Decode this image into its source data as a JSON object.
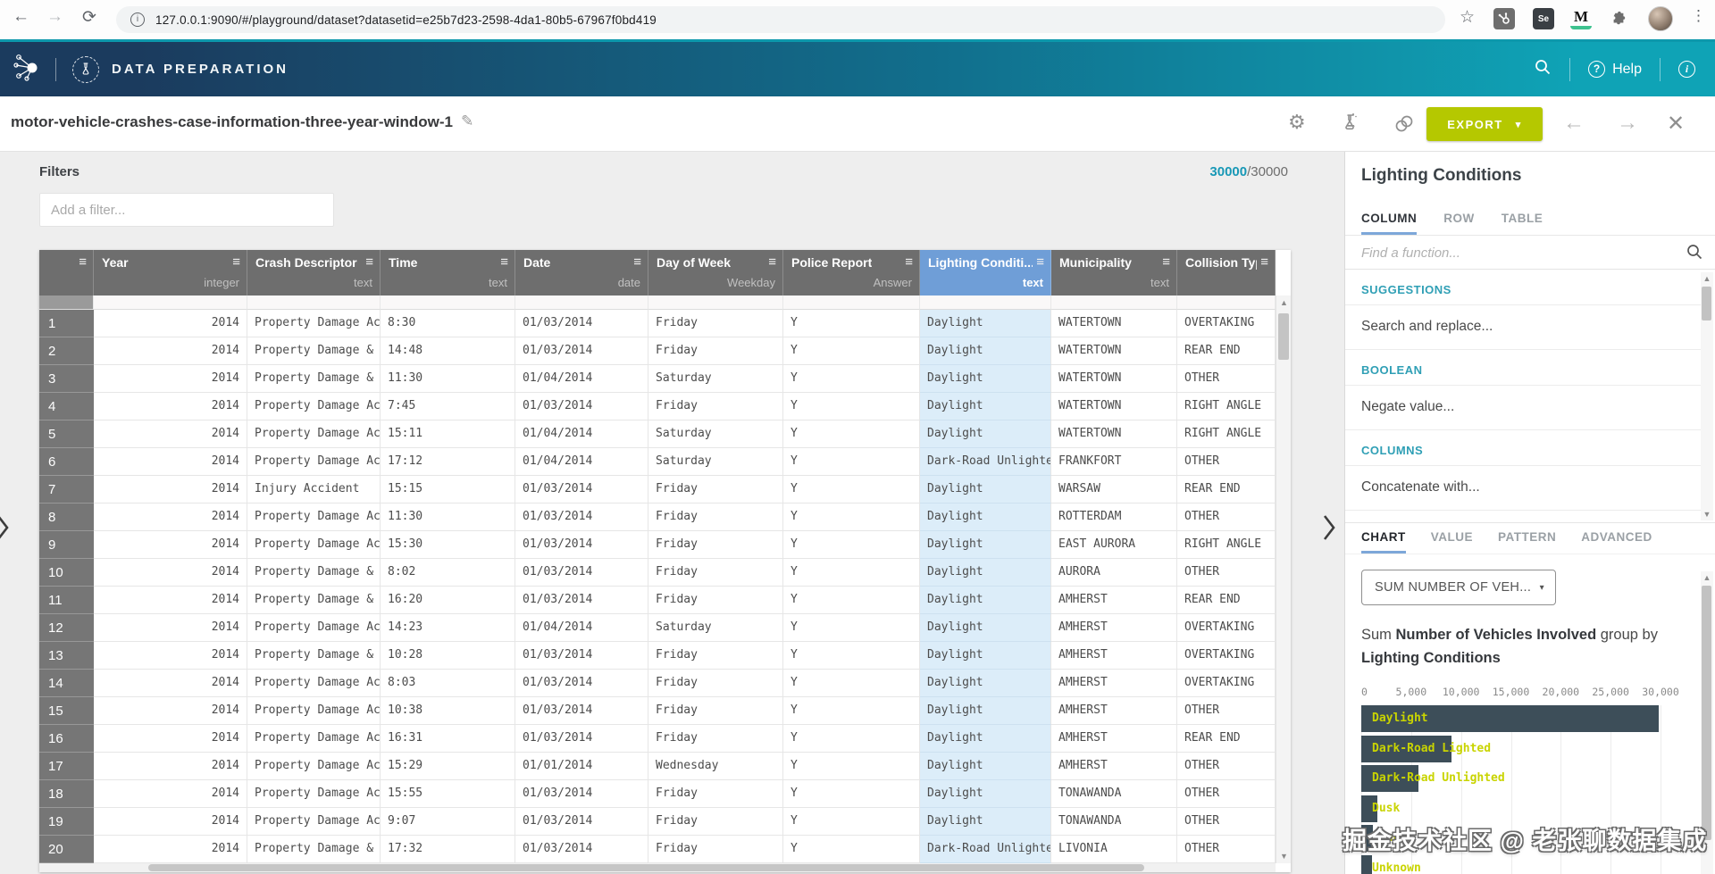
{
  "icons": {
    "menu": "≡",
    "up": "▲",
    "down": "▼",
    "caret": "▾",
    "back": "←",
    "forward": "→",
    "reload": "⟳",
    "star": "☆",
    "dots": "⋮",
    "close": "✕",
    "pencil": "✎",
    "gear": "⚙",
    "chev": "❯",
    "se": "Se",
    "m": "M",
    "qmark": "?",
    "info_i": "i"
  },
  "browser": {
    "url": "127.0.0.1:9090/#/playground/dataset?datasetid=e25b7d23-2598-4da1-80b5-67967f0bd419"
  },
  "nav": {
    "app_title": "DATA PREPARATION",
    "help_label": "Help"
  },
  "toolbar": {
    "dataset_title": "motor-vehicle-crashes-case-information-three-year-window-1",
    "export_label": "EXPORT"
  },
  "filters": {
    "heading": "Filters",
    "placeholder": "Add a filter...",
    "count_current": "30000",
    "count_total": "/30000"
  },
  "table": {
    "columns": [
      {
        "label": "Year",
        "type": "integer"
      },
      {
        "label": "Crash Descriptor",
        "type": "text"
      },
      {
        "label": "Time",
        "type": "text"
      },
      {
        "label": "Date",
        "type": "date"
      },
      {
        "label": "Day of Week",
        "type": "Weekday"
      },
      {
        "label": "Police Report",
        "type": "Answer"
      },
      {
        "label": "Lighting Conditi...",
        "type": "text",
        "selected": true
      },
      {
        "label": "Municipality",
        "type": "text"
      },
      {
        "label": "Collision Type Descriptor",
        "type": ""
      }
    ],
    "rows": [
      [
        "1",
        "2014",
        "Property Damage Accident",
        "8:30",
        "01/03/2014",
        "Friday",
        "Y",
        "Daylight",
        "WATERTOWN",
        "OVERTAKING"
      ],
      [
        "2",
        "2014",
        "Property Damage & Injury Accident",
        "14:48",
        "01/03/2014",
        "Friday",
        "Y",
        "Daylight",
        "WATERTOWN",
        "REAR END"
      ],
      [
        "3",
        "2014",
        "Property Damage & Injury Accident",
        "11:30",
        "01/04/2014",
        "Saturday",
        "Y",
        "Daylight",
        "WATERTOWN",
        "OTHER"
      ],
      [
        "4",
        "2014",
        "Property Damage Accident",
        "7:45",
        "01/03/2014",
        "Friday",
        "Y",
        "Daylight",
        "WATERTOWN",
        "RIGHT ANGLE"
      ],
      [
        "5",
        "2014",
        "Property Damage Accident",
        "15:11",
        "01/04/2014",
        "Saturday",
        "Y",
        "Daylight",
        "WATERTOWN",
        "RIGHT ANGLE"
      ],
      [
        "6",
        "2014",
        "Property Damage Accident",
        "17:12",
        "01/04/2014",
        "Saturday",
        "Y",
        "Dark-Road Unlighted",
        "FRANKFORT",
        "OTHER"
      ],
      [
        "7",
        "2014",
        "Injury Accident",
        "15:15",
        "01/03/2014",
        "Friday",
        "Y",
        "Daylight",
        "WARSAW",
        "REAR END"
      ],
      [
        "8",
        "2014",
        "Property Damage Accident",
        "11:30",
        "01/03/2014",
        "Friday",
        "Y",
        "Daylight",
        "ROTTERDAM",
        "OTHER"
      ],
      [
        "9",
        "2014",
        "Property Damage Accident",
        "15:30",
        "01/03/2014",
        "Friday",
        "Y",
        "Daylight",
        "EAST AURORA",
        "RIGHT ANGLE"
      ],
      [
        "10",
        "2014",
        "Property Damage & Injury Accident",
        "8:02",
        "01/03/2014",
        "Friday",
        "Y",
        "Daylight",
        "AURORA",
        "OTHER"
      ],
      [
        "11",
        "2014",
        "Property Damage & Injury Accident",
        "16:20",
        "01/03/2014",
        "Friday",
        "Y",
        "Daylight",
        "AMHERST",
        "REAR END"
      ],
      [
        "12",
        "2014",
        "Property Damage Accident",
        "14:23",
        "01/04/2014",
        "Saturday",
        "Y",
        "Daylight",
        "AMHERST",
        "OVERTAKING"
      ],
      [
        "13",
        "2014",
        "Property Damage & Injury Accident",
        "10:28",
        "01/03/2014",
        "Friday",
        "Y",
        "Daylight",
        "AMHERST",
        "OVERTAKING"
      ],
      [
        "14",
        "2014",
        "Property Damage Accident",
        "8:03",
        "01/03/2014",
        "Friday",
        "Y",
        "Daylight",
        "AMHERST",
        "OVERTAKING"
      ],
      [
        "15",
        "2014",
        "Property Damage Accident",
        "10:38",
        "01/03/2014",
        "Friday",
        "Y",
        "Daylight",
        "AMHERST",
        "OTHER"
      ],
      [
        "16",
        "2014",
        "Property Damage Accident",
        "16:31",
        "01/03/2014",
        "Friday",
        "Y",
        "Daylight",
        "AMHERST",
        "REAR END"
      ],
      [
        "17",
        "2014",
        "Property Damage Accident",
        "15:29",
        "01/01/2014",
        "Wednesday",
        "Y",
        "Daylight",
        "AMHERST",
        "OTHER"
      ],
      [
        "18",
        "2014",
        "Property Damage Accident",
        "15:55",
        "01/03/2014",
        "Friday",
        "Y",
        "Daylight",
        "TONAWANDA",
        "OTHER"
      ],
      [
        "19",
        "2014",
        "Property Damage Accident",
        "9:07",
        "01/03/2014",
        "Friday",
        "Y",
        "Daylight",
        "TONAWANDA",
        "OTHER"
      ],
      [
        "20",
        "2014",
        "Property Damage & Injury Accident",
        "17:32",
        "01/03/2014",
        "Friday",
        "Y",
        "Dark-Road Unlighted",
        "LIVONIA",
        "OTHER"
      ]
    ]
  },
  "panel": {
    "title": "Lighting Conditions",
    "tabs": [
      {
        "label": "COLUMN",
        "active": true
      },
      {
        "label": "ROW",
        "active": false
      },
      {
        "label": "TABLE",
        "active": false
      }
    ],
    "search_placeholder": "Find a function...",
    "function_list": [
      {
        "kind": "section",
        "label": "SUGGESTIONS"
      },
      {
        "kind": "item",
        "label": "Search and replace..."
      },
      {
        "kind": "section",
        "label": "BOOLEAN"
      },
      {
        "kind": "item",
        "label": "Negate value..."
      },
      {
        "kind": "section",
        "label": "COLUMNS"
      },
      {
        "kind": "item",
        "label": "Concatenate with..."
      }
    ],
    "detail_tabs": [
      {
        "label": "CHART",
        "active": true
      },
      {
        "label": "VALUE",
        "active": false
      },
      {
        "label": "PATTERN",
        "active": false
      },
      {
        "label": "ADVANCED",
        "active": false
      }
    ],
    "aggregation_dropdown": "SUM NUMBER OF VEH...",
    "description": {
      "prefix": "Sum ",
      "bold1": "Number of Vehicles Involved",
      "mid": " group by ",
      "bold2": "Lighting Conditions"
    }
  },
  "chart_data": {
    "type": "bar",
    "orientation": "horizontal",
    "title": "Sum Number of Vehicles Involved group by Lighting Conditions",
    "categories": [
      "Daylight",
      "Dark-Road Lighted",
      "Dark-Road Unlighted",
      "Dusk",
      "Dawn",
      "Unknown"
    ],
    "values": [
      29800,
      9000,
      5700,
      1600,
      1200,
      1100
    ],
    "xlabel": "Sum of Number of Vehicles Involved",
    "ylabel": "Lighting Conditions",
    "xlim": [
      0,
      30000
    ],
    "tick_values": [
      0,
      5000,
      10000,
      15000,
      20000,
      25000,
      30000
    ],
    "tick_labels": [
      "0",
      "5,000",
      "10,000",
      "15,000",
      "20,000",
      "25,000",
      "30,000"
    ],
    "grid": true,
    "bar_color": "#3d4e59",
    "label_color": "#c9d400"
  },
  "watermark": "掘金技术社区 @ 老张聊数据集成",
  "colors": {
    "accent_teal": "#0fa3b6",
    "navy": "#1b3b5e",
    "export_green": "#b5c800",
    "selected_column_blue": "#6f9ed7",
    "selected_cell_blue": "#dcedf9",
    "count_teal": "#1898b6"
  }
}
